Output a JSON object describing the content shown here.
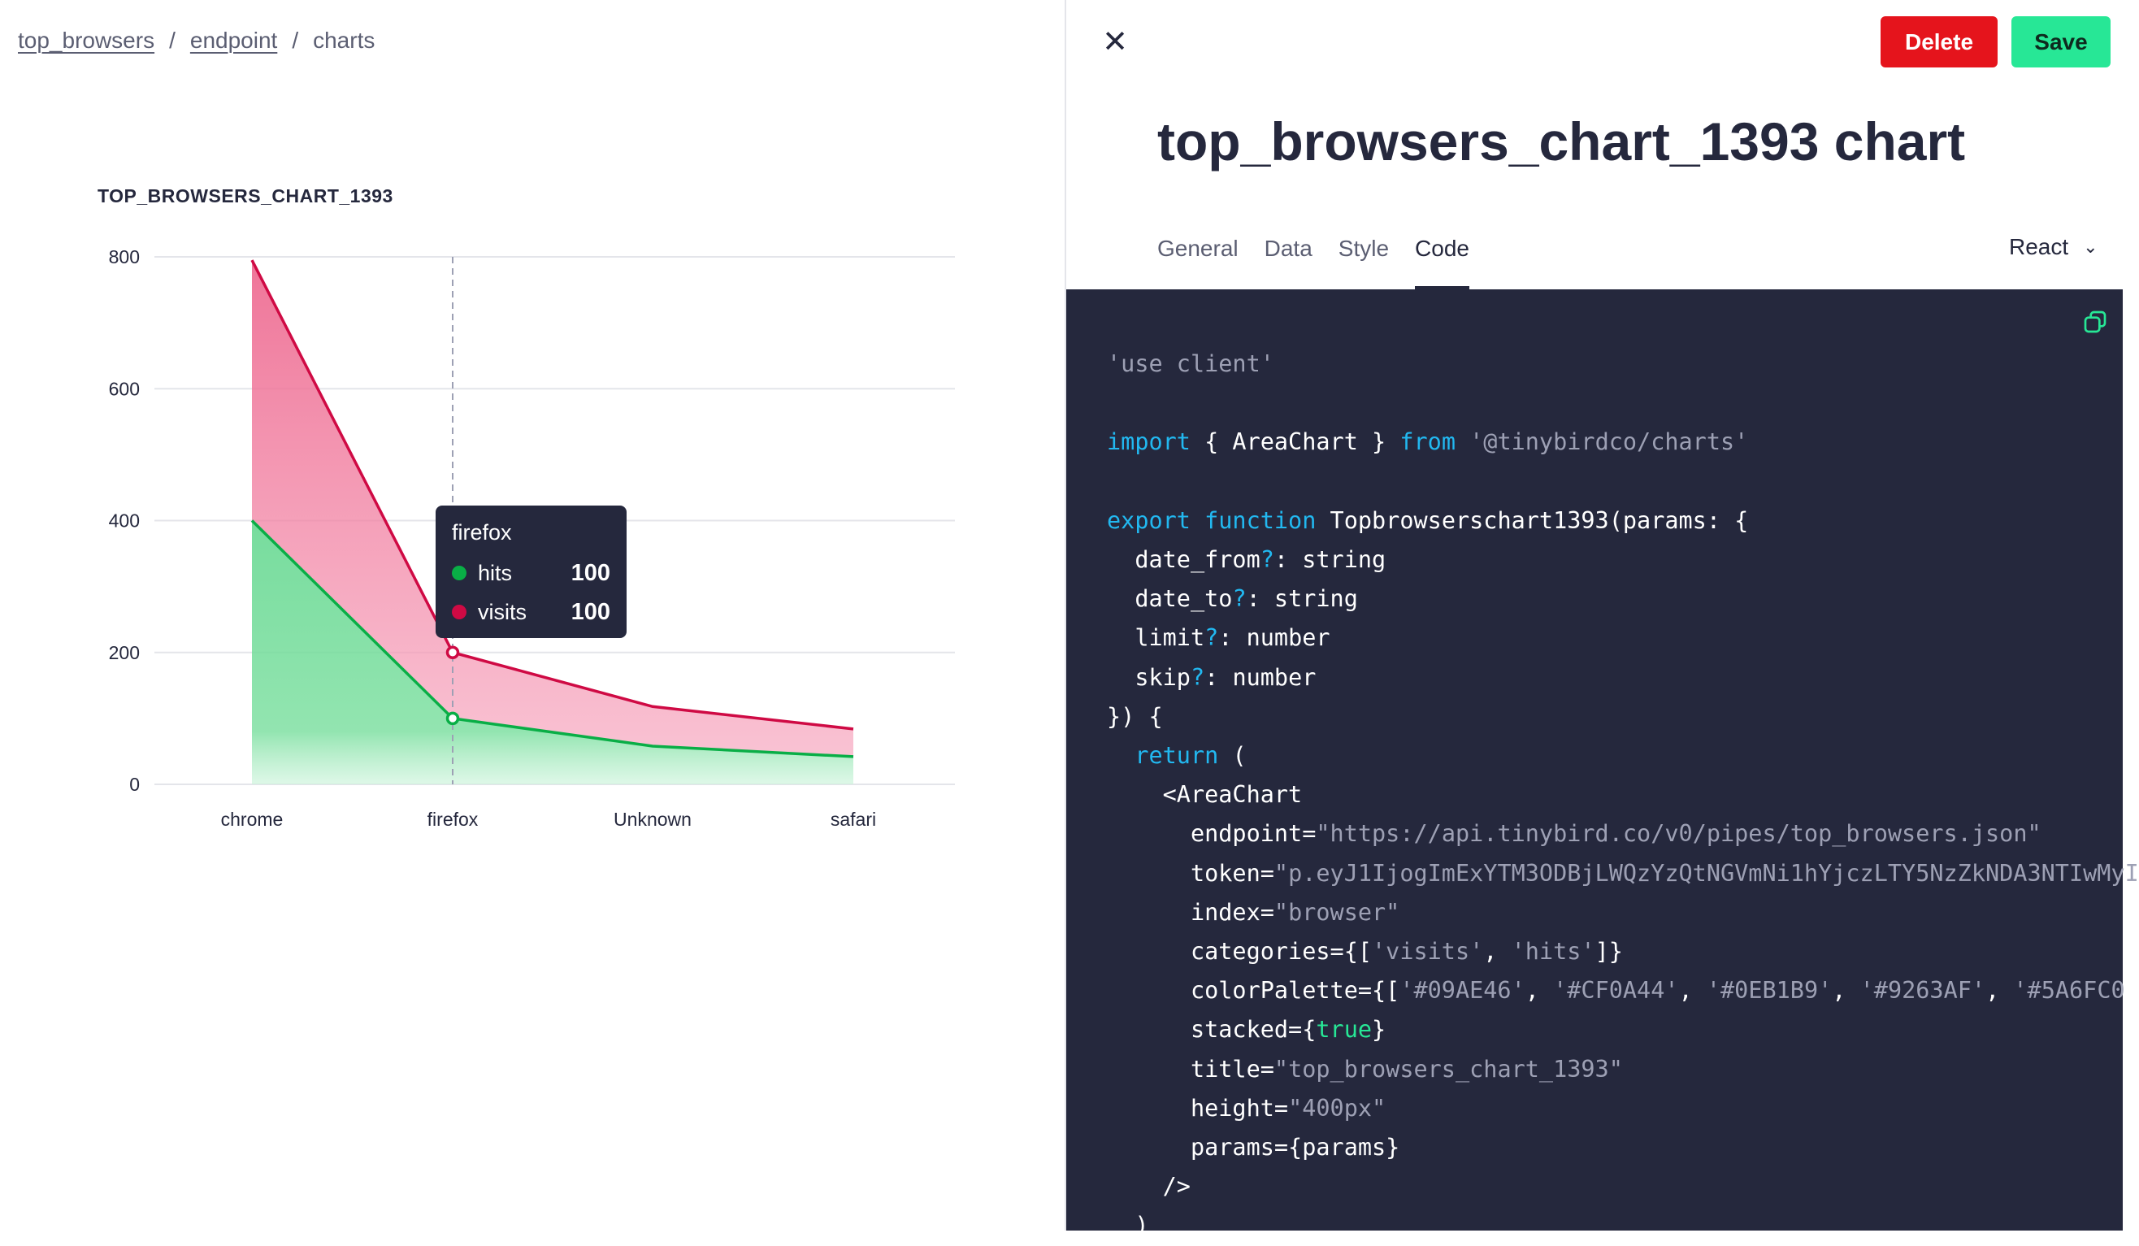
{
  "breadcrumb": {
    "items": [
      "top_browsers",
      "endpoint",
      "charts"
    ],
    "separator": "/"
  },
  "chart": {
    "title": "TOP_BROWSERS_CHART_1393",
    "tooltip": {
      "title": "firefox",
      "rows": [
        {
          "name": "hits",
          "value": "100",
          "color": "#09AE46"
        },
        {
          "name": "visits",
          "value": "100",
          "color": "#CF0A44"
        }
      ]
    }
  },
  "chart_data": {
    "type": "area",
    "stacked": true,
    "title": "TOP_BROWSERS_CHART_1393",
    "categories": [
      "chrome",
      "firefox",
      "Unknown",
      "safari"
    ],
    "series": [
      {
        "name": "hits",
        "values": [
          400,
          100,
          58,
          42
        ],
        "color": "#09AE46"
      },
      {
        "name": "visits",
        "values": [
          395,
          100,
          60,
          42
        ],
        "color": "#CF0A44"
      }
    ],
    "ylim": [
      0,
      800
    ],
    "yticks": [
      0,
      200,
      400,
      600,
      800
    ],
    "grid": true,
    "highlight_category": "firefox"
  },
  "panel": {
    "close_icon": "close-icon",
    "delete_label": "Delete",
    "save_label": "Save",
    "title": "top_browsers_chart_1393 chart",
    "tabs": [
      "General",
      "Data",
      "Style",
      "Code"
    ],
    "active_tab": "Code",
    "language": "React"
  },
  "code_lines": [
    [
      [
        "str",
        "'use client'"
      ]
    ],
    [],
    [
      [
        "kw",
        "import"
      ],
      [
        "txt",
        " { AreaChart } "
      ],
      [
        "kw",
        "from"
      ],
      [
        "str",
        " '@tinybirdco/charts'"
      ]
    ],
    [],
    [
      [
        "kw",
        "export function"
      ],
      [
        "txt",
        " Topbrowserschart1393(params: {"
      ]
    ],
    [
      [
        "txt",
        "  date_from"
      ],
      [
        "kw",
        "?"
      ],
      [
        "txt",
        ": string"
      ]
    ],
    [
      [
        "txt",
        "  date_to"
      ],
      [
        "kw",
        "?"
      ],
      [
        "txt",
        ": string"
      ]
    ],
    [
      [
        "txt",
        "  limit"
      ],
      [
        "kw",
        "?"
      ],
      [
        "txt",
        ": number"
      ]
    ],
    [
      [
        "txt",
        "  skip"
      ],
      [
        "kw",
        "?"
      ],
      [
        "txt",
        ": number"
      ]
    ],
    [
      [
        "txt",
        "}) {"
      ]
    ],
    [
      [
        "kw",
        "  return"
      ],
      [
        "txt",
        " ("
      ]
    ],
    [
      [
        "txt",
        "    <AreaChart"
      ]
    ],
    [
      [
        "txt",
        "      endpoint="
      ],
      [
        "str",
        "\"https://api.tinybird.co/v0/pipes/top_browsers.json\""
      ]
    ],
    [
      [
        "txt",
        "      token="
      ],
      [
        "str",
        "\"p.eyJ1IjogImExYTM3ODBjLWQzYzQtNGVmNi1hYjczLTY5NzZkNDA3NTIwMyI"
      ]
    ],
    [
      [
        "txt",
        "      index="
      ],
      [
        "str",
        "\"browser\""
      ]
    ],
    [
      [
        "txt",
        "      categories={["
      ],
      [
        "str",
        "'visits'"
      ],
      [
        "txt",
        ", "
      ],
      [
        "str",
        "'hits'"
      ],
      [
        "txt",
        "]}"
      ]
    ],
    [
      [
        "txt",
        "      colorPalette={["
      ],
      [
        "str",
        "'#09AE46'"
      ],
      [
        "txt",
        ", "
      ],
      [
        "str",
        "'#CF0A44'"
      ],
      [
        "txt",
        ", "
      ],
      [
        "str",
        "'#0EB1B9'"
      ],
      [
        "txt",
        ", "
      ],
      [
        "str",
        "'#9263AF'"
      ],
      [
        "txt",
        ", "
      ],
      [
        "str",
        "'#5A6FC0"
      ]
    ],
    [
      [
        "txt",
        "      stacked={"
      ],
      [
        "bool",
        "true"
      ],
      [
        "txt",
        "}"
      ]
    ],
    [
      [
        "txt",
        "      title="
      ],
      [
        "str",
        "\"top_browsers_chart_1393\""
      ]
    ],
    [
      [
        "txt",
        "      height="
      ],
      [
        "str",
        "\"400px\""
      ]
    ],
    [
      [
        "txt",
        "      params={params}"
      ]
    ],
    [
      [
        "txt",
        "    />"
      ]
    ],
    [
      [
        "txt",
        "  )"
      ]
    ]
  ],
  "colors": {
    "hits": "#09AE46",
    "visits": "#CF0A44",
    "delete": "#E5141C",
    "save": "#27E796",
    "code_bg": "#25283D"
  }
}
